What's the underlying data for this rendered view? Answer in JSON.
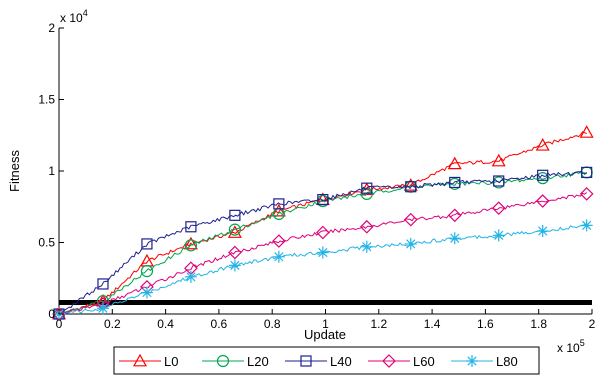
{
  "chart_data": {
    "type": "line",
    "title": "",
    "xlabel": "Update",
    "ylabel": "Fitness",
    "x_multiplier_label": "x 10",
    "x_multiplier_exp": "5",
    "y_multiplier_label": "x 10",
    "y_multiplier_exp": "4",
    "xlim": [
      0,
      200000
    ],
    "ylim": [
      0,
      20000
    ],
    "x_ticks": [
      0,
      20000,
      40000,
      60000,
      80000,
      100000,
      120000,
      140000,
      160000,
      180000,
      200000
    ],
    "x_tick_labels": [
      "0",
      "0.2",
      "0.4",
      "0.6",
      "0.8",
      "1",
      "1.2",
      "1.4",
      "1.6",
      "1.8",
      "2"
    ],
    "y_ticks": [
      0,
      5000,
      10000,
      15000,
      20000
    ],
    "y_tick_labels": [
      "0",
      "0.5",
      "1",
      "1.5",
      "2"
    ],
    "grid": false,
    "legend_position": "bottom-center",
    "baseline": {
      "y": 800,
      "color": "#000000"
    },
    "x": [
      0,
      16500,
      33000,
      49500,
      66000,
      82500,
      99000,
      115500,
      132000,
      148500,
      165000,
      181500,
      198000
    ],
    "series": [
      {
        "name": "L0",
        "color": "#ff0000",
        "marker": "triangle",
        "values": [
          0,
          900,
          3700,
          4900,
          5700,
          7200,
          8000,
          8700,
          9000,
          10500,
          10700,
          11800,
          12700
        ]
      },
      {
        "name": "L20",
        "color": "#00a651",
        "marker": "circle",
        "values": [
          0,
          900,
          3000,
          4800,
          5900,
          7000,
          7900,
          8400,
          8900,
          9100,
          9200,
          9500,
          9900
        ]
      },
      {
        "name": "L40",
        "color": "#1f1f8f",
        "marker": "square",
        "values": [
          0,
          2100,
          4900,
          6100,
          6900,
          7700,
          8000,
          8800,
          8900,
          9200,
          9300,
          9700,
          9900
        ]
      },
      {
        "name": "L60",
        "color": "#e0007a",
        "marker": "diamond",
        "values": [
          0,
          700,
          1900,
          3200,
          4300,
          5100,
          5700,
          6100,
          6600,
          6900,
          7400,
          7900,
          8400
        ]
      },
      {
        "name": "L80",
        "color": "#22b4e6",
        "marker": "asterisk",
        "values": [
          0,
          400,
          1500,
          2600,
          3400,
          4000,
          4300,
          4700,
          4900,
          5300,
          5500,
          5800,
          6200
        ]
      }
    ]
  }
}
